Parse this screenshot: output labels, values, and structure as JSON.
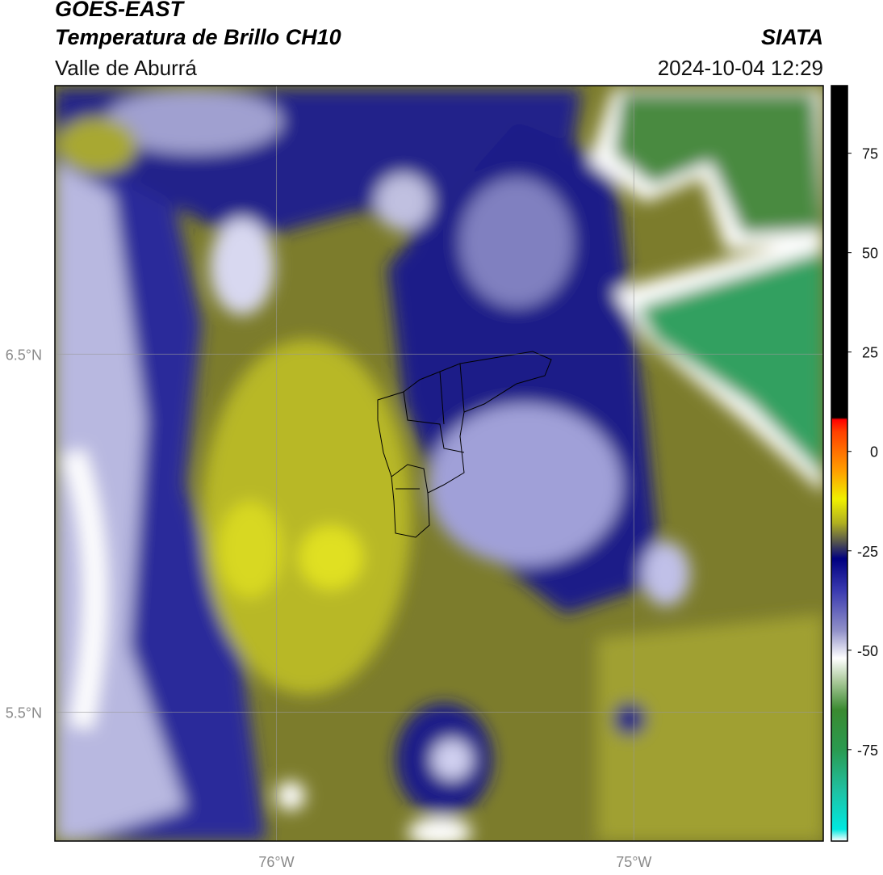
{
  "header": {
    "title": "GOES-EAST",
    "subtitle": "Temperatura de Brillo CH10",
    "region": "Valle de Aburrá",
    "source": "SIATA",
    "datetime": "2024-10-04 12:29"
  },
  "map": {
    "xlim": [
      -76.62,
      -74.47
    ],
    "ylim": [
      5.14,
      7.25
    ],
    "xticks": [
      {
        "value": -76,
        "label": "76°W"
      },
      {
        "value": -75,
        "label": "75°W"
      }
    ],
    "yticks": [
      {
        "value": 6.5,
        "label": "6.5°N"
      },
      {
        "value": 5.5,
        "label": "5.5°N"
      }
    ],
    "grid": true
  },
  "colorbar": {
    "lim": [
      -98,
      92
    ],
    "ticks": [
      75,
      50,
      25,
      0,
      -25,
      -50,
      -75
    ],
    "stops": [
      {
        "value": -98,
        "color": "#ffffff"
      },
      {
        "value": -95,
        "color": "#00e8e0"
      },
      {
        "value": -85,
        "color": "#20c0a0"
      },
      {
        "value": -75,
        "color": "#2a9a50"
      },
      {
        "value": -65,
        "color": "#3a8a30"
      },
      {
        "value": -58,
        "color": "#a8c898"
      },
      {
        "value": -52,
        "color": "#ffffff"
      },
      {
        "value": -45,
        "color": "#9090c8"
      },
      {
        "value": -35,
        "color": "#3a3ab0"
      },
      {
        "value": -27,
        "color": "#000080"
      },
      {
        "value": -23,
        "color": "#505050"
      },
      {
        "value": -18,
        "color": "#b0b020"
      },
      {
        "value": -12,
        "color": "#f0f000"
      },
      {
        "value": -5,
        "color": "#ffa000"
      },
      {
        "value": 5,
        "color": "#ff4000"
      },
      {
        "value": 8,
        "color": "#ff0000"
      },
      {
        "value": 8.5,
        "color": "#000000"
      },
      {
        "value": 92,
        "color": "#000000"
      }
    ]
  }
}
